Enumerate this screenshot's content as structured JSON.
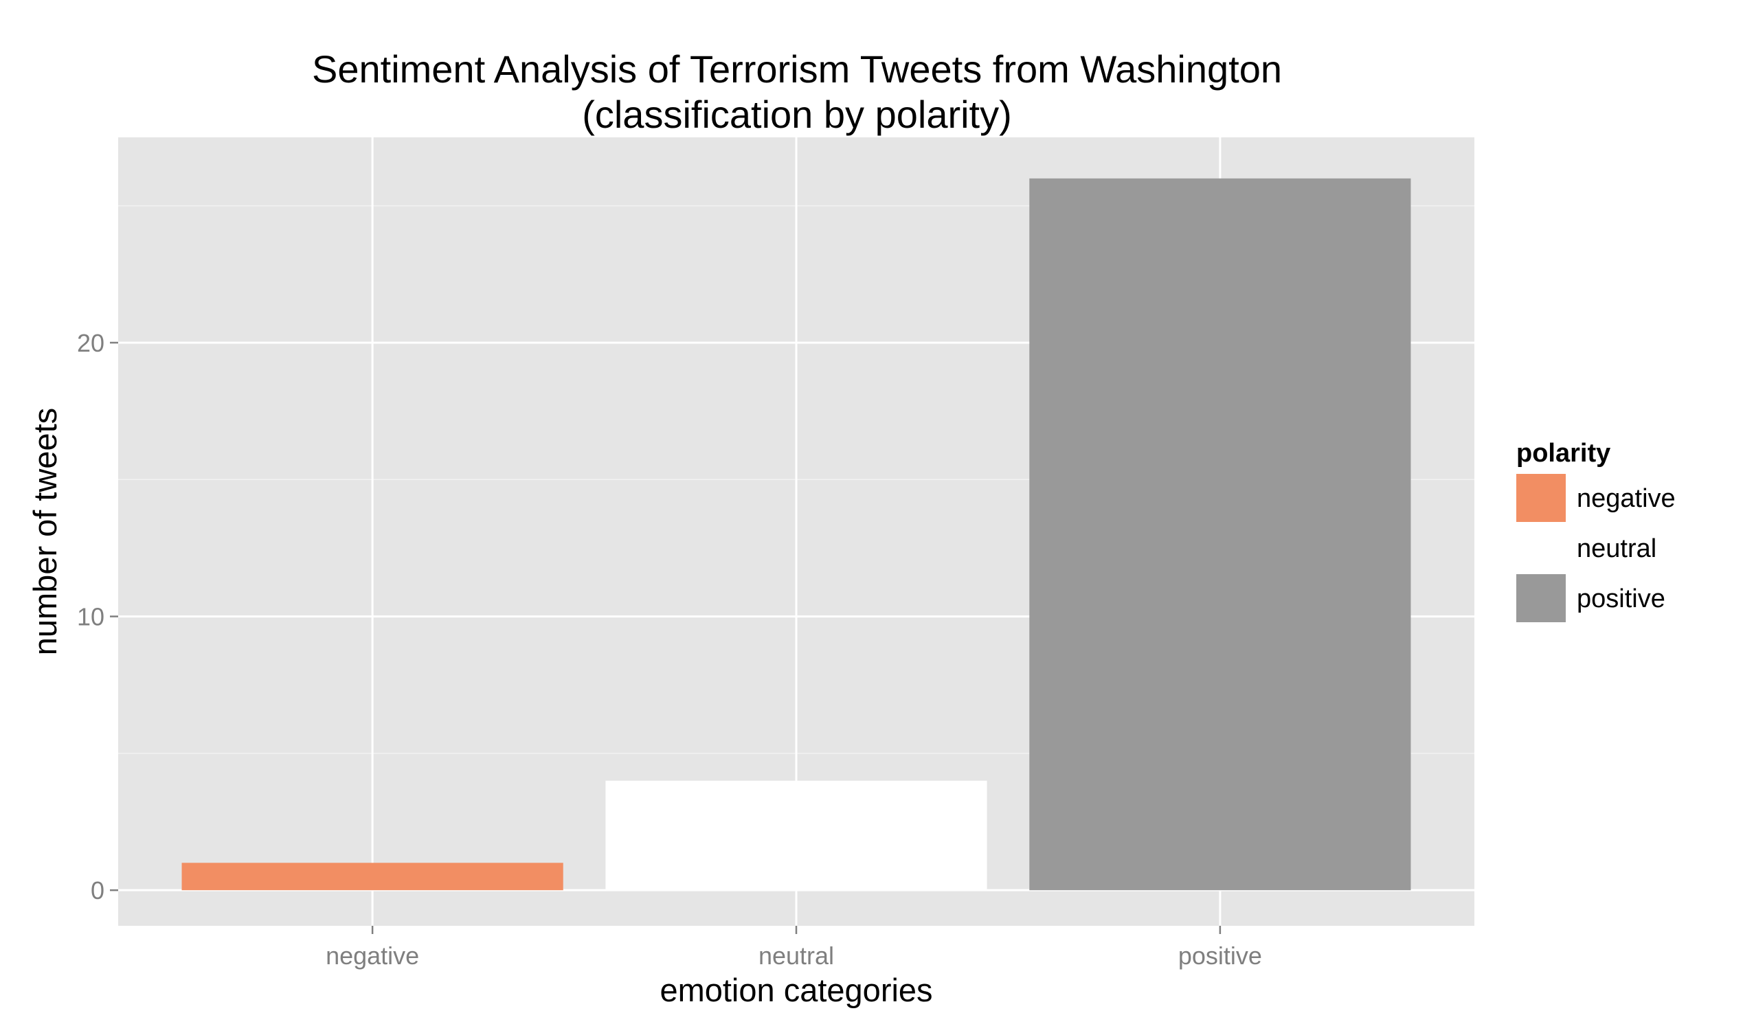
{
  "chart_data": {
    "type": "bar",
    "title": "Sentiment Analysis of Terrorism Tweets from Washington",
    "subtitle": "(classification by polarity)",
    "xlabel": "emotion categories",
    "ylabel": "number of tweets",
    "categories": [
      "negative",
      "neutral",
      "positive"
    ],
    "values": [
      1,
      4,
      26
    ],
    "colors": [
      "#f28e63",
      "#ffffff",
      "#999999"
    ],
    "ylim": [
      -1.3,
      27.5
    ],
    "yticks": [
      0,
      10,
      20
    ],
    "grid": true,
    "panel_background": "#e5e5e5",
    "legend": {
      "title": "polarity",
      "placement": "right",
      "entries": [
        {
          "label": "negative",
          "color": "#f28e63"
        },
        {
          "label": "neutral",
          "color": "#ffffff"
        },
        {
          "label": "positive",
          "color": "#999999"
        }
      ]
    }
  }
}
